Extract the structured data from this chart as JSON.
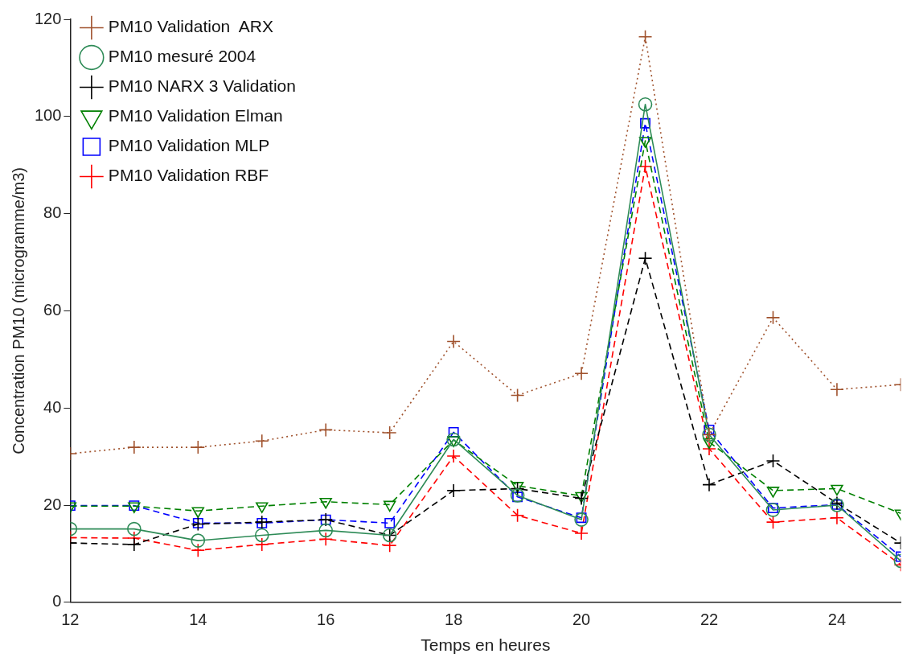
{
  "chart_data": {
    "type": "line",
    "xlabel": "Temps en heures",
    "ylabel": "Concentration PM10 (microgramme/m3)",
    "x": [
      12,
      13,
      14,
      15,
      16,
      17,
      18,
      19,
      20,
      21,
      22,
      23,
      24,
      25
    ],
    "xlim": [
      12,
      25
    ],
    "xticks": [
      12,
      14,
      16,
      18,
      20,
      22,
      24
    ],
    "ylim": [
      0,
      120
    ],
    "yticks": [
      0,
      20,
      40,
      60,
      80,
      100,
      120
    ],
    "grid": false,
    "legend": "top left",
    "series": [
      {
        "name": "PM10 Validation  ARX",
        "color": "#a0522d",
        "marker": "cross",
        "line_style": "dotted",
        "values": [
          30.6,
          31.9,
          31.9,
          33.2,
          35.5,
          34.9,
          53.7,
          42.6,
          47.1,
          116.4,
          34.5,
          58.6,
          43.8,
          44.8
        ]
      },
      {
        "name": "PM10 mesuré 2004",
        "color": "#2e8b57",
        "marker": "circle",
        "line_style": "solid",
        "values": [
          15.1,
          15.1,
          12.7,
          13.8,
          14.8,
          13.8,
          33.5,
          22,
          17,
          102.5,
          34.5,
          19,
          20,
          8.5
        ]
      },
      {
        "name": "PM10 NARX 3 Validation",
        "color": "#000000",
        "marker": "cross",
        "line_style": "dashed",
        "values": [
          12.2,
          11.9,
          16.1,
          16.5,
          17,
          13.8,
          23,
          23.4,
          21.4,
          70.8,
          24.2,
          29.1,
          20.4,
          12.2
        ]
      },
      {
        "name": "PM10 Validation Elman",
        "color": "#008000",
        "marker": "triangle",
        "line_style": "dashed",
        "values": [
          19.8,
          19.8,
          18.8,
          19.8,
          20.7,
          20.1,
          33.4,
          24,
          21.9,
          95,
          33,
          23,
          23.4,
          18.3
        ]
      },
      {
        "name": "PM10 Validation MLP",
        "color": "#0000ff",
        "marker": "square",
        "line_style": "dashed",
        "values": [
          19.9,
          19.9,
          16.3,
          16.3,
          17,
          16.3,
          35,
          21.7,
          17.4,
          98.6,
          35.5,
          19.4,
          20.1,
          9.4
        ]
      },
      {
        "name": "PM10 Validation RBF",
        "color": "#ff0000",
        "marker": "cross",
        "line_style": "dashed",
        "values": [
          13.3,
          13.2,
          10.7,
          11.9,
          13,
          11.7,
          30.1,
          17.9,
          14.2,
          89.7,
          31.6,
          16.5,
          17.4,
          7.7
        ]
      }
    ]
  }
}
